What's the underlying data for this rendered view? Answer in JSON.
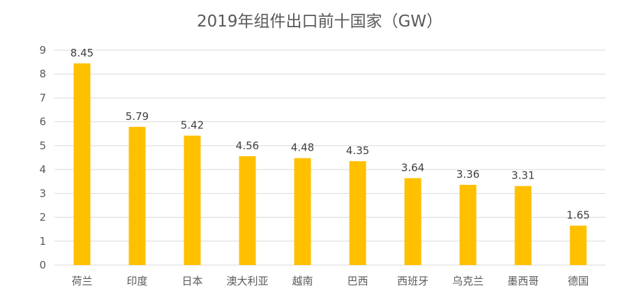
{
  "chart_data": {
    "type": "bar",
    "title": "2019年组件出口前十国家（GW）",
    "xlabel": "",
    "ylabel": "",
    "categories": [
      "荷兰",
      "印度",
      "日本",
      "澳大利亚",
      "越南",
      "巴西",
      "西班牙",
      "乌克兰",
      "墨西哥",
      "德国"
    ],
    "values": [
      8.45,
      5.79,
      5.42,
      4.56,
      4.48,
      4.35,
      3.64,
      3.36,
      3.31,
      1.65
    ],
    "data_labels": [
      "8.45",
      "5.79",
      "5.42",
      "4.56",
      "4.48",
      "4.35",
      "3.64",
      "3.36",
      "3.31",
      "1.65"
    ],
    "ylim": [
      0,
      9
    ],
    "yticks": [
      0,
      1,
      2,
      3,
      4,
      5,
      6,
      7,
      8,
      9
    ],
    "grid": true,
    "legend": "none",
    "bar_color": "#FFC000",
    "grid_color": "#D9D9D9",
    "text_color": "#595959"
  }
}
